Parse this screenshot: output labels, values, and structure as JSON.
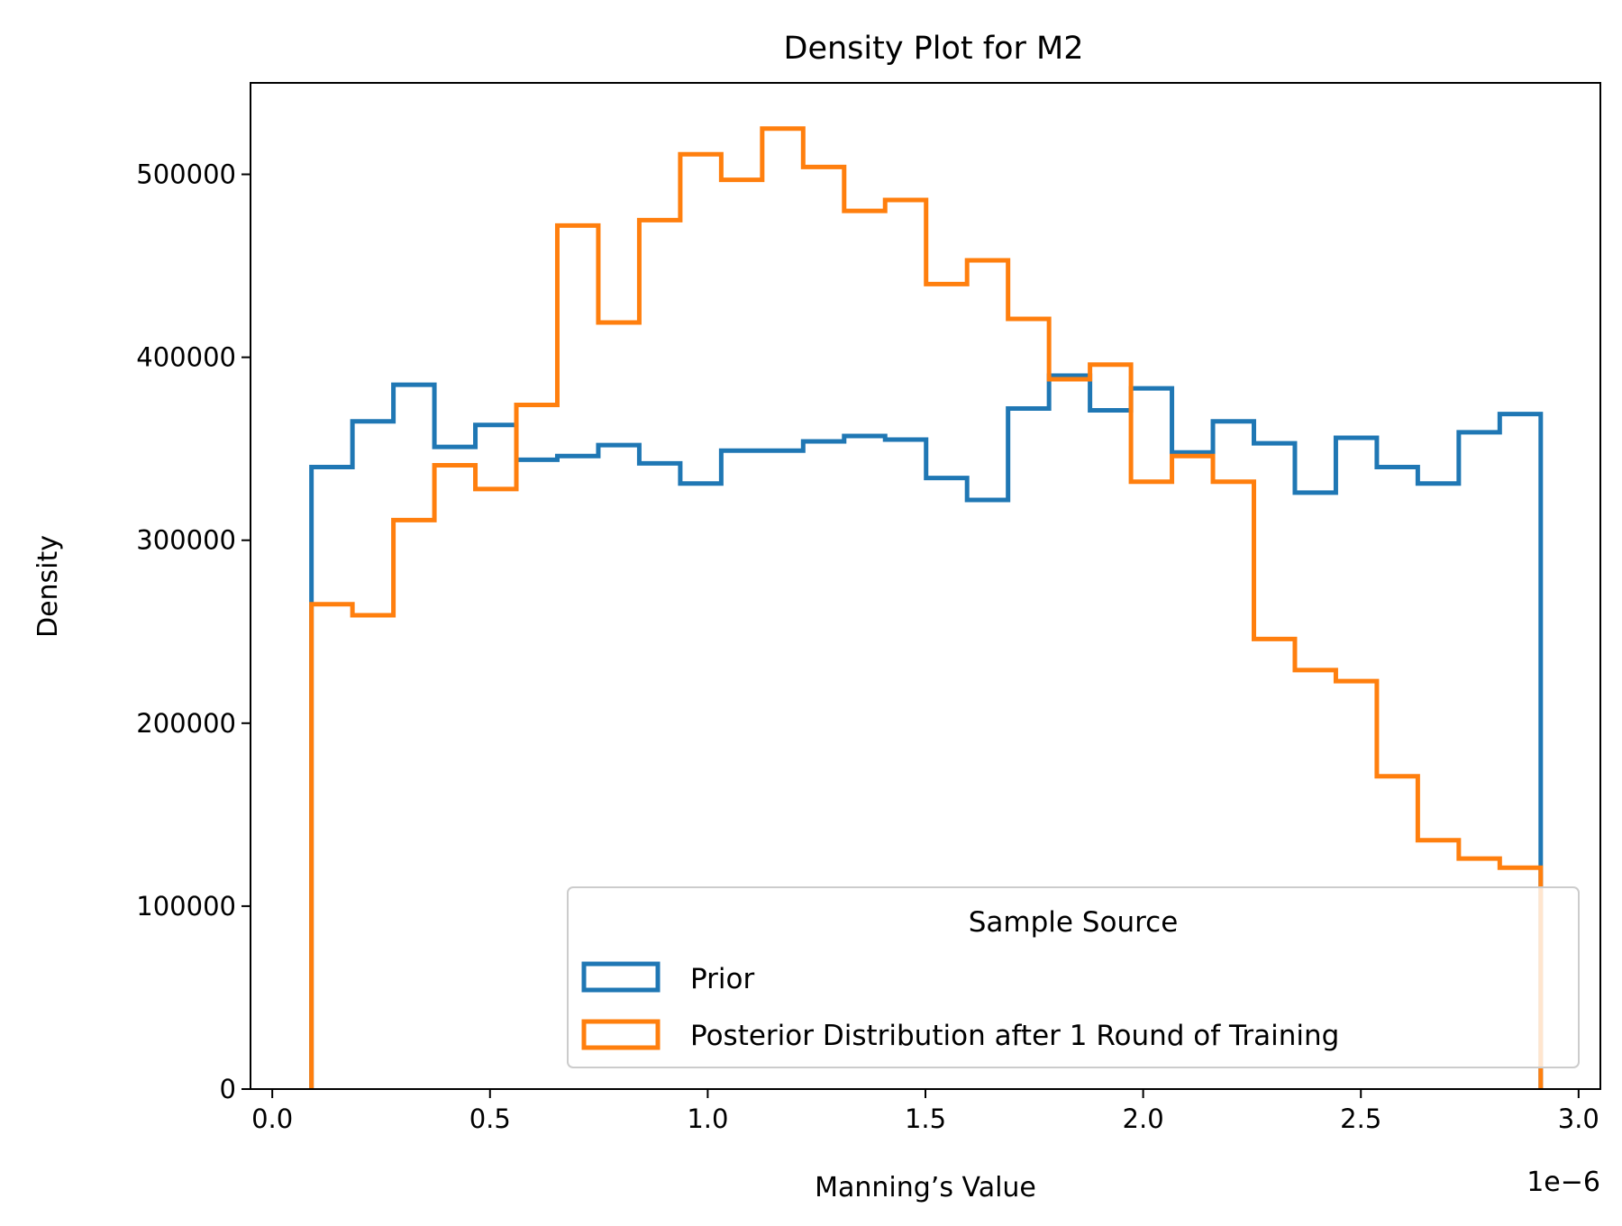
{
  "chart_data": {
    "type": "histogram-step",
    "title": "Density Plot for M2",
    "xlabel": "Manning’s Value",
    "ylabel": "Density",
    "x_offset_label": "1e−6",
    "xlim": [
      -0.05,
      3.05
    ],
    "ylim": [
      0,
      550000
    ],
    "x_ticks": [
      0.0,
      0.5,
      1.0,
      1.5,
      2.0,
      2.5,
      3.0
    ],
    "x_tick_labels": [
      "0.0",
      "0.5",
      "1.0",
      "1.5",
      "2.0",
      "2.5",
      "3.0"
    ],
    "y_ticks": [
      0,
      100000,
      200000,
      300000,
      400000,
      500000
    ],
    "y_tick_labels": [
      "0",
      "100000",
      "200000",
      "300000",
      "400000",
      "500000"
    ],
    "grid": false,
    "legend": {
      "title": "Sample Source",
      "placement": "lower-right"
    },
    "bin_edges": [
      0.09,
      0.1841,
      0.2782,
      0.3723,
      0.4664,
      0.5605,
      0.6546,
      0.7487,
      0.8428,
      0.9369,
      1.031,
      1.1251,
      1.2192,
      1.3133,
      1.4074,
      1.5015,
      1.5956,
      1.6897,
      1.7838,
      1.8779,
      1.972,
      2.0661,
      2.1602,
      2.2543,
      2.3484,
      2.4425,
      2.5366,
      2.6307,
      2.7248,
      2.8189,
      2.913
    ],
    "series": [
      {
        "name": "Prior",
        "color": "#1f77b4",
        "values": [
          340000,
          365000,
          385000,
          351000,
          363000,
          344000,
          346000,
          352000,
          342000,
          331000,
          349000,
          349000,
          354000,
          357000,
          355000,
          334000,
          322000,
          372000,
          390000,
          371000,
          383000,
          348000,
          365000,
          353000,
          326000,
          356000,
          340000,
          331000,
          359000,
          369000
        ]
      },
      {
        "name": "Posterior Distribution after 1 Round of Training",
        "color": "#ff7f0e",
        "values": [
          265000,
          259000,
          311000,
          341000,
          328000,
          374000,
          472000,
          419000,
          475000,
          511000,
          497000,
          525000,
          504000,
          480000,
          486000,
          440000,
          453000,
          421000,
          388000,
          396000,
          332000,
          346000,
          332000,
          246000,
          229000,
          223000,
          171000,
          136000,
          126000,
          121000
        ]
      }
    ]
  }
}
